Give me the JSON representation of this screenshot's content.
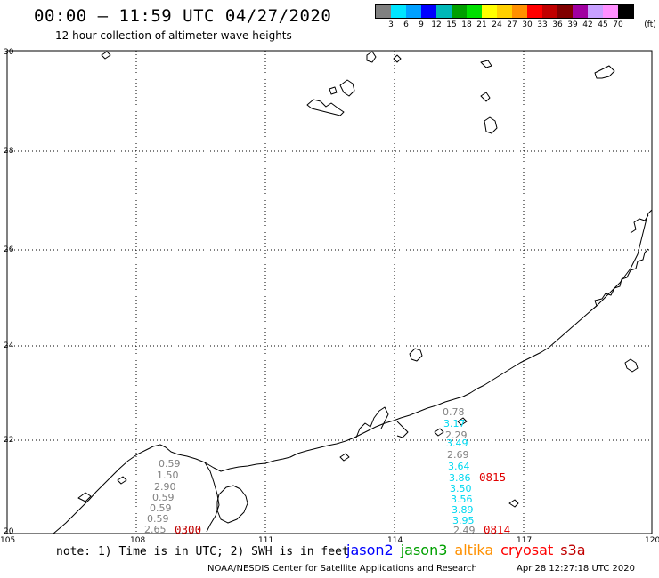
{
  "header": {
    "title": "00:00 – 11:59 UTC 04/27/2020",
    "subtitle": "12 hour collection of altimeter wave heights"
  },
  "legend": {
    "colors": [
      "#808080",
      "#00e5ff",
      "#00a0ff",
      "#0000ff",
      "#00b8b8",
      "#00a000",
      "#00e000",
      "#ffff00",
      "#ffd000",
      "#ff9000",
      "#ff0000",
      "#c00000",
      "#800000",
      "#a000a0",
      "#c8a0ff",
      "#ff90ff",
      "#000000"
    ],
    "labels": [
      "3",
      "6",
      "9",
      "12",
      "15",
      "18",
      "21",
      "24",
      "27",
      "30",
      "33",
      "36",
      "39",
      "42",
      "45",
      "70"
    ],
    "unit": "(ft)"
  },
  "map": {
    "lat_labels": [
      "30",
      "28",
      "26",
      "24",
      "22",
      "20"
    ],
    "lon_labels": [
      "105",
      "108",
      "111",
      "114",
      "117",
      "120"
    ]
  },
  "tracks": [
    {
      "time": "0300",
      "time_color": "#c00000",
      "values": [
        {
          "v": "0.59",
          "color": "#808080"
        },
        {
          "v": "1.50",
          "color": "#808080"
        },
        {
          "v": "2.90",
          "color": "#808080"
        },
        {
          "v": "0.59",
          "color": "#808080"
        },
        {
          "v": "0.59",
          "color": "#808080"
        },
        {
          "v": "0.59",
          "color": "#808080"
        },
        {
          "v": "2.65",
          "color": "#808080"
        }
      ]
    },
    {
      "time": "0815",
      "time_color": "#e00000",
      "values": [
        {
          "v": "0.78",
          "color": "#808080"
        },
        {
          "v": "3.17",
          "color": "#00d8f0"
        },
        {
          "v": "2.29",
          "color": "#808080"
        },
        {
          "v": "3.49",
          "color": "#00d8f0"
        },
        {
          "v": "2.69",
          "color": "#808080"
        },
        {
          "v": "3.64",
          "color": "#00d8f0"
        },
        {
          "v": "3.86",
          "color": "#00d8f0"
        },
        {
          "v": "3.50",
          "color": "#00d8f0"
        },
        {
          "v": "3.56",
          "color": "#00d8f0"
        },
        {
          "v": "3.89",
          "color": "#00d8f0"
        },
        {
          "v": "3.95",
          "color": "#00d8f0"
        },
        {
          "v": "2.49",
          "color": "#808080"
        }
      ]
    },
    {
      "time": "0814",
      "time_color": "#e00000",
      "values": []
    }
  ],
  "footer": {
    "note": "note: 1) Time is in UTC; 2) SWH is in feet",
    "satellites": [
      {
        "name": "jason2",
        "color": "#0000ff"
      },
      {
        "name": "jason3",
        "color": "#00a000"
      },
      {
        "name": "altika",
        "color": "#ff9000"
      },
      {
        "name": "cryosat",
        "color": "#ff0000"
      },
      {
        "name": "s3a",
        "color": "#c00000"
      }
    ],
    "credit": "NOAA/NESDIS Center for Satellite Applications and Research",
    "timestamp": "Apr 28 12:27:18 UTC 2020"
  }
}
